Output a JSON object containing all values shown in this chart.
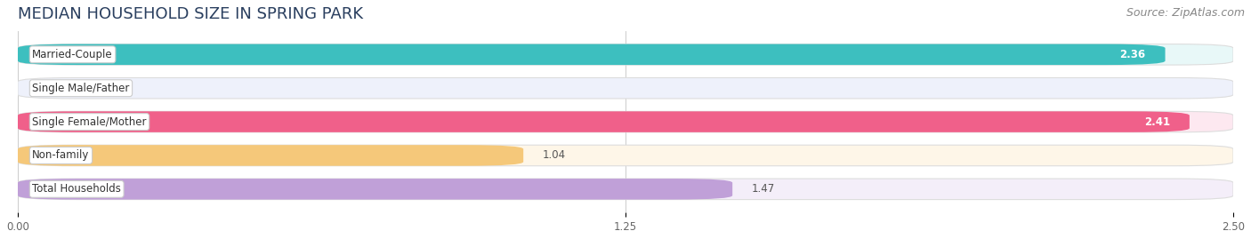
{
  "title": "MEDIAN HOUSEHOLD SIZE IN SPRING PARK",
  "source": "Source: ZipAtlas.com",
  "categories": [
    "Married-Couple",
    "Single Male/Father",
    "Single Female/Mother",
    "Non-family",
    "Total Households"
  ],
  "values": [
    2.36,
    0.0,
    2.41,
    1.04,
    1.47
  ],
  "colors": [
    "#3dbfbf",
    "#9ab0e8",
    "#f0608a",
    "#f5c87a",
    "#c0a0d8"
  ],
  "bar_bg_colors": [
    "#e8f8f8",
    "#eef1fb",
    "#fde8f0",
    "#fef6e8",
    "#f4eef9"
  ],
  "xlim": [
    0,
    2.5
  ],
  "xticks": [
    0.0,
    1.25,
    2.5
  ],
  "xtick_labels": [
    "0.00",
    "1.25",
    "2.50"
  ],
  "title_fontsize": 13,
  "source_fontsize": 9,
  "label_fontsize": 8.5,
  "value_fontsize": 8.5,
  "bar_height": 0.62,
  "background_color": "#ffffff"
}
